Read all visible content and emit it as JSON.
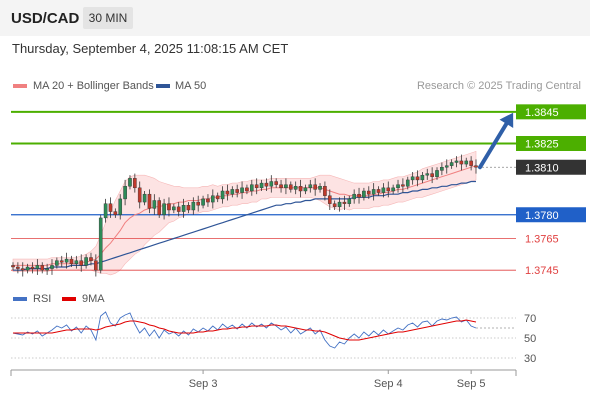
{
  "header": {
    "symbol": "USD/CAD",
    "timeframe": "30 MIN"
  },
  "timestamp": "Thursday, September 4, 2025 11:08:15 AM CET",
  "legend": [
    {
      "label": "MA 20 + Bollinger Bands",
      "color": "#f08080"
    },
    {
      "label": "MA 50",
      "color": "#2f5597"
    }
  ],
  "copyright": "Research © 2025 Trading Central",
  "rsi_legend": [
    {
      "label": "RSI",
      "color": "#4472c4"
    },
    {
      "label": "9MA",
      "color": "#e00000"
    }
  ],
  "colors": {
    "green": "#4caf00",
    "blue": "#2060c8",
    "red": "#e04040",
    "dark": "#333333"
  },
  "chart_data": {
    "type": "candlestick",
    "ylim": [
      1.3735,
      1.3855
    ],
    "levels": [
      {
        "value": 1.3845,
        "label": "1.3845",
        "kind": "resistance"
      },
      {
        "value": 1.3825,
        "label": "1.3825",
        "kind": "resistance"
      },
      {
        "value": 1.381,
        "label": "1.3810",
        "kind": "last-price"
      },
      {
        "value": 1.378,
        "label": "1.3780",
        "kind": "pivot"
      },
      {
        "value": 1.3765,
        "label": "1.3765",
        "kind": "support"
      },
      {
        "value": 1.3745,
        "label": "1.3745",
        "kind": "support"
      }
    ],
    "forecast_arrow": {
      "from": 1.381,
      "to": 1.3845
    },
    "xticks": [
      "Sep 3",
      "Sep 4",
      "Sep 5"
    ],
    "xtick_index": [
      39,
      77,
      94
    ],
    "closes": [
      1.3747,
      1.3746,
      1.3745,
      1.3747,
      1.3746,
      1.3748,
      1.3745,
      1.3746,
      1.3748,
      1.3751,
      1.375,
      1.3752,
      1.3749,
      1.3751,
      1.3748,
      1.3753,
      1.3751,
      1.3745,
      1.3778,
      1.3787,
      1.3782,
      1.378,
      1.379,
      1.3798,
      1.3803,
      1.3797,
      1.3788,
      1.3793,
      1.3784,
      1.3789,
      1.378,
      1.3787,
      1.3783,
      1.3785,
      1.3782,
      1.3786,
      1.3783,
      1.3788,
      1.3786,
      1.379,
      1.3788,
      1.3792,
      1.379,
      1.3795,
      1.3793,
      1.3796,
      1.3794,
      1.3797,
      1.3795,
      1.3799,
      1.3797,
      1.38,
      1.3798,
      1.3801,
      1.3799,
      1.3797,
      1.3799,
      1.3796,
      1.3798,
      1.3795,
      1.3797,
      1.3799,
      1.3796,
      1.3798,
      1.3792,
      1.3787,
      1.3785,
      1.3788,
      1.3787,
      1.379,
      1.3793,
      1.3791,
      1.3795,
      1.3793,
      1.3796,
      1.3794,
      1.3797,
      1.3795,
      1.3797,
      1.3799,
      1.3798,
      1.3802,
      1.3804,
      1.3802,
      1.3805,
      1.3806,
      1.3804,
      1.3808,
      1.381,
      1.3811,
      1.3813,
      1.3814,
      1.3812,
      1.3814,
      1.3811,
      1.381
    ],
    "ma20": [
      1.3748,
      1.3748,
      1.3748,
      1.3748,
      1.3748,
      1.3748,
      1.3748,
      1.3748,
      1.3749,
      1.3749,
      1.3749,
      1.3749,
      1.3749,
      1.3749,
      1.375,
      1.375,
      1.3751,
      1.3752,
      1.3755,
      1.3759,
      1.3762,
      1.3766,
      1.377,
      1.3775,
      1.3778,
      1.378,
      1.3781,
      1.3783,
      1.3784,
      1.3785,
      1.3785,
      1.3786,
      1.3787,
      1.3787,
      1.3788,
      1.3788,
      1.3789,
      1.3789,
      1.3789,
      1.379,
      1.379,
      1.3791,
      1.3791,
      1.3792,
      1.3792,
      1.3793,
      1.3793,
      1.3794,
      1.3794,
      1.3795,
      1.3795,
      1.3796,
      1.3796,
      1.3797,
      1.3797,
      1.3797,
      1.3797,
      1.3797,
      1.3797,
      1.3797,
      1.3797,
      1.3797,
      1.3797,
      1.3797,
      1.3796,
      1.3795,
      1.3794,
      1.3793,
      1.3793,
      1.3792,
      1.3792,
      1.3792,
      1.3792,
      1.3792,
      1.3793,
      1.3793,
      1.3794,
      1.3794,
      1.3795,
      1.3796,
      1.3796,
      1.3797,
      1.3798,
      1.3799,
      1.38,
      1.3801,
      1.3802,
      1.3803,
      1.3804,
      1.3805,
      1.3806,
      1.3807,
      1.3808,
      1.3809,
      1.381,
      1.3811
    ],
    "bb_width": [
      0.0004,
      0.0004,
      0.0004,
      0.0004,
      0.0004,
      0.0004,
      0.0004,
      0.0004,
      0.0004,
      0.0004,
      0.0004,
      0.0004,
      0.0004,
      0.0004,
      0.0004,
      0.0005,
      0.0006,
      0.0008,
      0.0012,
      0.0016,
      0.002,
      0.0023,
      0.0025,
      0.0026,
      0.0026,
      0.0025,
      0.0024,
      0.0022,
      0.002,
      0.0018,
      0.0016,
      0.0014,
      0.0012,
      0.0011,
      0.001,
      0.0009,
      0.0008,
      0.0008,
      0.0008,
      0.0008,
      0.0008,
      0.0008,
      0.0007,
      0.0007,
      0.0007,
      0.0007,
      0.0007,
      0.0007,
      0.0007,
      0.0007,
      0.0007,
      0.0006,
      0.0006,
      0.0006,
      0.0006,
      0.0006,
      0.0006,
      0.0006,
      0.0006,
      0.0006,
      0.0006,
      0.0006,
      0.0007,
      0.0008,
      0.0009,
      0.001,
      0.001,
      0.001,
      0.0009,
      0.0009,
      0.0008,
      0.0008,
      0.0008,
      0.0008,
      0.0008,
      0.0008,
      0.0008,
      0.0008,
      0.0008,
      0.0008,
      0.0008,
      0.0008,
      0.0008,
      0.0008,
      0.0009,
      0.0009,
      0.0009,
      0.0009,
      0.0009,
      0.0009,
      0.0009,
      0.0009,
      0.0009,
      0.0009,
      0.0009,
      0.0009
    ],
    "ma50": [
      1.3745,
      1.3745,
      1.3745,
      1.3746,
      1.3746,
      1.3746,
      1.3746,
      1.3746,
      1.3747,
      1.3747,
      1.3747,
      1.3747,
      1.3748,
      1.3748,
      1.3748,
      1.3748,
      1.3749,
      1.3749,
      1.375,
      1.3751,
      1.3752,
      1.3753,
      1.3754,
      1.3755,
      1.3756,
      1.3757,
      1.3758,
      1.3759,
      1.376,
      1.3761,
      1.3762,
      1.3763,
      1.3764,
      1.3765,
      1.3766,
      1.3767,
      1.3768,
      1.3769,
      1.377,
      1.3771,
      1.3772,
      1.3773,
      1.3774,
      1.3775,
      1.3776,
      1.3777,
      1.3778,
      1.3779,
      1.378,
      1.3781,
      1.3782,
      1.3783,
      1.3784,
      1.3785,
      1.3786,
      1.3786,
      1.3787,
      1.3787,
      1.3788,
      1.3788,
      1.3789,
      1.3789,
      1.379,
      1.379,
      1.379,
      1.379,
      1.379,
      1.379,
      1.379,
      1.379,
      1.3791,
      1.3791,
      1.3791,
      1.3791,
      1.3792,
      1.3792,
      1.3792,
      1.3793,
      1.3793,
      1.3793,
      1.3794,
      1.3794,
      1.3795,
      1.3795,
      1.3796,
      1.3796,
      1.3797,
      1.3797,
      1.3798,
      1.3798,
      1.3799,
      1.3799,
      1.38,
      1.38,
      1.3801,
      1.3801
    ],
    "rsi": {
      "levels": [
        70,
        50,
        30
      ],
      "ylim": [
        22,
        80
      ],
      "values": [
        55,
        54,
        53,
        56,
        54,
        57,
        52,
        55,
        58,
        62,
        60,
        63,
        57,
        61,
        55,
        62,
        58,
        48,
        72,
        76,
        65,
        62,
        70,
        73,
        75,
        64,
        55,
        60,
        52,
        58,
        50,
        58,
        54,
        56,
        52,
        57,
        53,
        59,
        56,
        60,
        57,
        62,
        58,
        64,
        60,
        63,
        59,
        64,
        60,
        65,
        61,
        64,
        60,
        65,
        62,
        58,
        61,
        55,
        60,
        54,
        57,
        60,
        54,
        58,
        48,
        42,
        40,
        46,
        44,
        50,
        54,
        50,
        56,
        52,
        57,
        53,
        58,
        54,
        57,
        60,
        58,
        63,
        65,
        61,
        66,
        67,
        62,
        67,
        69,
        68,
        70,
        71,
        66,
        68,
        62,
        60
      ],
      "ma": [
        55,
        55,
        55,
        55,
        55,
        55,
        55,
        55,
        55,
        56,
        57,
        58,
        58,
        59,
        59,
        59,
        59,
        58,
        59,
        61,
        62,
        63,
        64,
        66,
        67,
        67,
        66,
        65,
        63,
        62,
        60,
        59,
        57,
        56,
        55,
        55,
        55,
        55,
        56,
        56,
        57,
        57,
        58,
        59,
        59,
        60,
        60,
        61,
        61,
        62,
        62,
        62,
        62,
        63,
        63,
        62,
        62,
        61,
        60,
        59,
        58,
        58,
        57,
        57,
        56,
        54,
        52,
        50,
        49,
        48,
        48,
        48,
        49,
        50,
        51,
        52,
        53,
        54,
        55,
        56,
        56,
        57,
        58,
        59,
        60,
        61,
        62,
        63,
        64,
        65,
        66,
        67,
        67,
        68,
        67,
        66
      ]
    }
  }
}
